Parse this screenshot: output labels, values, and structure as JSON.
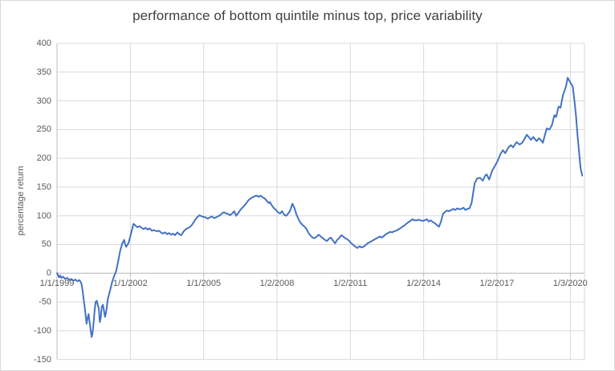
{
  "chart_data": {
    "type": "line",
    "title": "performance of bottom quintile minus top, price variability",
    "xlabel": "",
    "ylabel": "percentage return",
    "ylim": [
      -150,
      400
    ],
    "y_tick_step": 50,
    "y_ticks": [
      400,
      350,
      300,
      250,
      200,
      150,
      100,
      50,
      0,
      -50,
      -100,
      -150
    ],
    "x_tick_labels": [
      "1/1/1999",
      "1/1/2002",
      "1/1/2005",
      "1/2/2008",
      "1/2/2011",
      "1/2/2014",
      "1/2/2017",
      "1/3/2020"
    ],
    "x_tick_interval_years": 3,
    "x_range_years": [
      1999.0,
      2020.58
    ],
    "grid": true,
    "legend": false,
    "colors": {
      "line": "#4472C4",
      "gridline": "#D9D9D9",
      "axis": "#BFBFBF",
      "tick_label": "#595959",
      "title": "#404040",
      "background": "#FFFFFF",
      "border": "#D9D9D9"
    },
    "series": [
      {
        "points": [
          [
            1999.0,
            0
          ],
          [
            1999.04,
            -3
          ],
          [
            1999.08,
            -7
          ],
          [
            1999.13,
            -4
          ],
          [
            1999.17,
            -8
          ],
          [
            1999.25,
            -6
          ],
          [
            1999.33,
            -10
          ],
          [
            1999.42,
            -8
          ],
          [
            1999.5,
            -12
          ],
          [
            1999.58,
            -10
          ],
          [
            1999.67,
            -13
          ],
          [
            1999.75,
            -11
          ],
          [
            1999.83,
            -14
          ],
          [
            1999.92,
            -12
          ],
          [
            2000.0,
            -18
          ],
          [
            2000.04,
            -28
          ],
          [
            2000.08,
            -42
          ],
          [
            2000.13,
            -58
          ],
          [
            2000.17,
            -72
          ],
          [
            2000.21,
            -88
          ],
          [
            2000.25,
            -78
          ],
          [
            2000.29,
            -71
          ],
          [
            2000.33,
            -84
          ],
          [
            2000.38,
            -100
          ],
          [
            2000.42,
            -111
          ],
          [
            2000.46,
            -103
          ],
          [
            2000.5,
            -84
          ],
          [
            2000.54,
            -64
          ],
          [
            2000.58,
            -50
          ],
          [
            2000.63,
            -48
          ],
          [
            2000.67,
            -55
          ],
          [
            2000.71,
            -62
          ],
          [
            2000.75,
            -85
          ],
          [
            2000.79,
            -78
          ],
          [
            2000.83,
            -58
          ],
          [
            2000.88,
            -55
          ],
          [
            2000.92,
            -65
          ],
          [
            2000.96,
            -76
          ],
          [
            2001.0,
            -70
          ],
          [
            2001.04,
            -58
          ],
          [
            2001.08,
            -45
          ],
          [
            2001.17,
            -30
          ],
          [
            2001.25,
            -16
          ],
          [
            2001.33,
            -6
          ],
          [
            2001.42,
            4
          ],
          [
            2001.5,
            20
          ],
          [
            2001.58,
            38
          ],
          [
            2001.67,
            52
          ],
          [
            2001.75,
            58
          ],
          [
            2001.79,
            50
          ],
          [
            2001.83,
            46
          ],
          [
            2001.92,
            52
          ],
          [
            2002.0,
            64
          ],
          [
            2002.08,
            78
          ],
          [
            2002.13,
            86
          ],
          [
            2002.21,
            83
          ],
          [
            2002.29,
            80
          ],
          [
            2002.38,
            82
          ],
          [
            2002.46,
            79
          ],
          [
            2002.54,
            77
          ],
          [
            2002.63,
            79
          ],
          [
            2002.71,
            76
          ],
          [
            2002.79,
            78
          ],
          [
            2002.88,
            74
          ],
          [
            2002.96,
            75
          ],
          [
            2003.08,
            73
          ],
          [
            2003.17,
            74
          ],
          [
            2003.25,
            71
          ],
          [
            2003.33,
            69
          ],
          [
            2003.42,
            71
          ],
          [
            2003.5,
            68
          ],
          [
            2003.58,
            70
          ],
          [
            2003.67,
            67
          ],
          [
            2003.75,
            69
          ],
          [
            2003.83,
            66
          ],
          [
            2003.92,
            71
          ],
          [
            2004.0,
            68
          ],
          [
            2004.08,
            66
          ],
          [
            2004.17,
            72
          ],
          [
            2004.25,
            76
          ],
          [
            2004.33,
            78
          ],
          [
            2004.42,
            80
          ],
          [
            2004.5,
            83
          ],
          [
            2004.58,
            88
          ],
          [
            2004.67,
            94
          ],
          [
            2004.75,
            98
          ],
          [
            2004.83,
            101
          ],
          [
            2004.92,
            99
          ],
          [
            2005.0,
            98
          ],
          [
            2005.08,
            97
          ],
          [
            2005.17,
            95
          ],
          [
            2005.25,
            97
          ],
          [
            2005.33,
            99
          ],
          [
            2005.42,
            96
          ],
          [
            2005.5,
            97
          ],
          [
            2005.58,
            99
          ],
          [
            2005.67,
            101
          ],
          [
            2005.75,
            104
          ],
          [
            2005.83,
            106
          ],
          [
            2005.92,
            104
          ],
          [
            2006.0,
            103
          ],
          [
            2006.08,
            101
          ],
          [
            2006.17,
            104
          ],
          [
            2006.25,
            108
          ],
          [
            2006.33,
            100
          ],
          [
            2006.42,
            105
          ],
          [
            2006.5,
            110
          ],
          [
            2006.58,
            114
          ],
          [
            2006.67,
            118
          ],
          [
            2006.75,
            122
          ],
          [
            2006.83,
            127
          ],
          [
            2006.92,
            130
          ],
          [
            2007.0,
            132
          ],
          [
            2007.08,
            134
          ],
          [
            2007.17,
            135
          ],
          [
            2007.25,
            133
          ],
          [
            2007.33,
            135
          ],
          [
            2007.42,
            132
          ],
          [
            2007.5,
            130
          ],
          [
            2007.58,
            126
          ],
          [
            2007.67,
            122
          ],
          [
            2007.71,
            124
          ],
          [
            2007.79,
            118
          ],
          [
            2007.88,
            113
          ],
          [
            2007.96,
            110
          ],
          [
            2008.04,
            106
          ],
          [
            2008.13,
            104
          ],
          [
            2008.21,
            108
          ],
          [
            2008.29,
            102
          ],
          [
            2008.38,
            100
          ],
          [
            2008.46,
            104
          ],
          [
            2008.54,
            109
          ],
          [
            2008.63,
            121
          ],
          [
            2008.71,
            114
          ],
          [
            2008.79,
            103
          ],
          [
            2008.88,
            94
          ],
          [
            2008.96,
            88
          ],
          [
            2009.04,
            84
          ],
          [
            2009.13,
            81
          ],
          [
            2009.21,
            77
          ],
          [
            2009.29,
            70
          ],
          [
            2009.38,
            65
          ],
          [
            2009.46,
            62
          ],
          [
            2009.54,
            61
          ],
          [
            2009.63,
            64
          ],
          [
            2009.71,
            67
          ],
          [
            2009.79,
            64
          ],
          [
            2009.88,
            61
          ],
          [
            2009.96,
            58
          ],
          [
            2010.04,
            56
          ],
          [
            2010.13,
            60
          ],
          [
            2010.21,
            62
          ],
          [
            2010.29,
            57
          ],
          [
            2010.38,
            52
          ],
          [
            2010.46,
            58
          ],
          [
            2010.54,
            61
          ],
          [
            2010.63,
            66
          ],
          [
            2010.71,
            64
          ],
          [
            2010.79,
            61
          ],
          [
            2010.88,
            59
          ],
          [
            2010.96,
            56
          ],
          [
            2011.04,
            52
          ],
          [
            2011.13,
            49
          ],
          [
            2011.21,
            46
          ],
          [
            2011.29,
            44
          ],
          [
            2011.38,
            47
          ],
          [
            2011.46,
            45
          ],
          [
            2011.54,
            46
          ],
          [
            2011.63,
            49
          ],
          [
            2011.71,
            52
          ],
          [
            2011.79,
            54
          ],
          [
            2011.88,
            56
          ],
          [
            2011.96,
            58
          ],
          [
            2012.04,
            60
          ],
          [
            2012.13,
            62
          ],
          [
            2012.21,
            64
          ],
          [
            2012.29,
            62
          ],
          [
            2012.38,
            65
          ],
          [
            2012.46,
            68
          ],
          [
            2012.54,
            70
          ],
          [
            2012.63,
            72
          ],
          [
            2012.71,
            71
          ],
          [
            2012.79,
            73
          ],
          [
            2012.88,
            74
          ],
          [
            2012.96,
            76
          ],
          [
            2013.04,
            78
          ],
          [
            2013.13,
            81
          ],
          [
            2013.21,
            83
          ],
          [
            2013.29,
            86
          ],
          [
            2013.38,
            89
          ],
          [
            2013.46,
            91
          ],
          [
            2013.54,
            94
          ],
          [
            2013.63,
            92
          ],
          [
            2013.71,
            92
          ],
          [
            2013.79,
            93
          ],
          [
            2013.88,
            92
          ],
          [
            2013.96,
            91
          ],
          [
            2014.04,
            92
          ],
          [
            2014.13,
            94
          ],
          [
            2014.21,
            90
          ],
          [
            2014.29,
            92
          ],
          [
            2014.38,
            89
          ],
          [
            2014.46,
            87
          ],
          [
            2014.54,
            84
          ],
          [
            2014.63,
            81
          ],
          [
            2014.71,
            90
          ],
          [
            2014.79,
            103
          ],
          [
            2014.88,
            107
          ],
          [
            2014.96,
            109
          ],
          [
            2015.04,
            108
          ],
          [
            2015.13,
            110
          ],
          [
            2015.21,
            112
          ],
          [
            2015.29,
            110
          ],
          [
            2015.38,
            113
          ],
          [
            2015.46,
            111
          ],
          [
            2015.54,
            112
          ],
          [
            2015.63,
            114
          ],
          [
            2015.71,
            110
          ],
          [
            2015.79,
            112
          ],
          [
            2015.88,
            113
          ],
          [
            2015.96,
            122
          ],
          [
            2016.0,
            132
          ],
          [
            2016.04,
            144
          ],
          [
            2016.09,
            157
          ],
          [
            2016.13,
            160
          ],
          [
            2016.19,
            165
          ],
          [
            2016.31,
            166
          ],
          [
            2016.42,
            161
          ],
          [
            2016.52,
            170
          ],
          [
            2016.58,
            172
          ],
          [
            2016.68,
            163
          ],
          [
            2016.81,
            179
          ],
          [
            2016.91,
            186
          ],
          [
            2017.02,
            195
          ],
          [
            2017.14,
            207
          ],
          [
            2017.24,
            214
          ],
          [
            2017.34,
            209
          ],
          [
            2017.47,
            219
          ],
          [
            2017.57,
            223
          ],
          [
            2017.66,
            219
          ],
          [
            2017.8,
            228
          ],
          [
            2017.93,
            224
          ],
          [
            2018.03,
            227
          ],
          [
            2018.12,
            233
          ],
          [
            2018.22,
            241
          ],
          [
            2018.32,
            236
          ],
          [
            2018.39,
            232
          ],
          [
            2018.49,
            237
          ],
          [
            2018.62,
            230
          ],
          [
            2018.72,
            235
          ],
          [
            2018.81,
            231
          ],
          [
            2018.88,
            227
          ],
          [
            2018.98,
            244
          ],
          [
            2019.04,
            252
          ],
          [
            2019.15,
            250
          ],
          [
            2019.25,
            258
          ],
          [
            2019.35,
            275
          ],
          [
            2019.42,
            272
          ],
          [
            2019.52,
            290
          ],
          [
            2019.6,
            288
          ],
          [
            2019.7,
            310
          ],
          [
            2019.77,
            318
          ],
          [
            2019.83,
            326
          ],
          [
            2019.89,
            340
          ],
          [
            2019.96,
            335
          ],
          [
            2020.03,
            330
          ],
          [
            2020.1,
            325
          ],
          [
            2020.16,
            304
          ],
          [
            2020.23,
            276
          ],
          [
            2020.29,
            244
          ],
          [
            2020.36,
            210
          ],
          [
            2020.42,
            183
          ],
          [
            2020.49,
            170
          ]
        ]
      }
    ]
  }
}
